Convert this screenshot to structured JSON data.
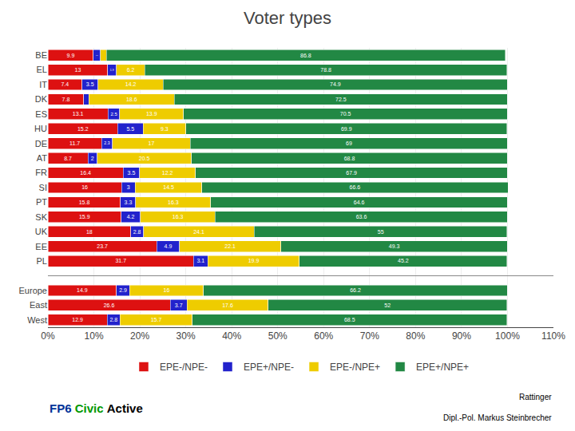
{
  "chart_data": {
    "type": "bar",
    "orientation": "horizontal",
    "stacked": true,
    "title": "Voter types",
    "categories": [
      "BE",
      "EL",
      "IT",
      "DK",
      "ES",
      "HU",
      "DE",
      "AT",
      "FR",
      "SI",
      "PT",
      "SK",
      "UK",
      "EE",
      "PL",
      null,
      "Europe",
      "East",
      "West"
    ],
    "series": [
      {
        "name": "EPE-/NPE-",
        "color": "#dd1111",
        "values": [
          9.9,
          13.0,
          7.4,
          7.8,
          13.1,
          15.2,
          11.7,
          8.7,
          16.4,
          16.0,
          15.8,
          15.9,
          18.0,
          23.7,
          31.7,
          null,
          14.9,
          26.6,
          12.9
        ],
        "value_labels": [
          "9.9",
          "13",
          "7.4",
          "7.8",
          "13.1",
          "15.2",
          "11.7",
          "8.7",
          "16.4",
          "16",
          "15.8",
          "15.9",
          "18",
          "23.7",
          "31.7",
          null,
          "14.9",
          "26.6",
          "12.9"
        ]
      },
      {
        "name": "EPE+/NPE-",
        "color": "#2222cc",
        "values": [
          1.5,
          1.9,
          3.5,
          1.1,
          2.5,
          5.5,
          2.3,
          2.0,
          3.5,
          3.0,
          3.3,
          4.2,
          2.8,
          4.9,
          3.1,
          null,
          2.9,
          3.7,
          2.8
        ],
        "value_labels": [
          "1.5",
          "1.9",
          "3.5",
          null,
          "2.5",
          "5.5",
          "2.3",
          "2",
          "3.5",
          "3",
          "3.3",
          "4.2",
          "2.8",
          "4.9",
          "3.1",
          null,
          "2.9",
          "3.7",
          "2.8"
        ]
      },
      {
        "name": "EPE-/NPE+",
        "color": "#eecc00",
        "values": [
          1.3,
          6.2,
          14.2,
          18.6,
          13.9,
          9.3,
          17.0,
          20.5,
          12.2,
          14.5,
          16.3,
          16.3,
          24.1,
          22.1,
          19.9,
          null,
          16.0,
          17.6,
          15.7
        ],
        "value_labels": [
          null,
          "6.2",
          "14.2",
          "18.6",
          "13.9",
          "9.3",
          "17",
          "20.5",
          "12.2",
          "14.5",
          "16.3",
          "16.3",
          "24.1",
          "22.1",
          "19.9",
          null,
          "16",
          "17.6",
          "15.7"
        ]
      },
      {
        "name": "EPE+/NPE+",
        "color": "#228844",
        "values": [
          86.8,
          78.8,
          74.9,
          72.5,
          70.5,
          69.9,
          69.0,
          68.8,
          67.9,
          66.6,
          64.6,
          63.6,
          55.0,
          49.3,
          45.2,
          null,
          66.2,
          52.0,
          68.5
        ],
        "value_labels": [
          "86.8",
          "78.8",
          "74.9",
          "72.5",
          "70.5",
          "69.9",
          "69",
          "68.8",
          "67.9",
          "66.6",
          "64.6",
          "63.6",
          "55",
          "49.3",
          "45.2",
          null,
          "66.2",
          "52",
          "68.5"
        ]
      }
    ],
    "xlim": [
      0,
      110
    ],
    "xticks": [
      {
        "value": 0,
        "label": "0%"
      },
      {
        "value": 10,
        "label": "10%"
      },
      {
        "value": 20,
        "label": "20%"
      },
      {
        "value": 30,
        "label": "30%"
      },
      {
        "value": 40,
        "label": "40%"
      },
      {
        "value": 50,
        "label": "50%"
      },
      {
        "value": 60,
        "label": "60%"
      },
      {
        "value": 70,
        "label": "70%"
      },
      {
        "value": 80,
        "label": "80%"
      },
      {
        "value": 90,
        "label": "90%"
      },
      {
        "value": 100,
        "label": "100%"
      },
      {
        "value": 110,
        "label": "110%"
      }
    ],
    "grid": true,
    "legend": "bottom",
    "data_labels": true,
    "annotations": [
      {
        "text": "FP6",
        "color": "#003399"
      },
      {
        "text": "Civic",
        "color": "#009900"
      },
      {
        "text": "Active",
        "color": "#000000"
      },
      {
        "text": "Rattinger"
      },
      {
        "text": "Dipl.-Pol. Markus Steinbrecher"
      }
    ]
  }
}
